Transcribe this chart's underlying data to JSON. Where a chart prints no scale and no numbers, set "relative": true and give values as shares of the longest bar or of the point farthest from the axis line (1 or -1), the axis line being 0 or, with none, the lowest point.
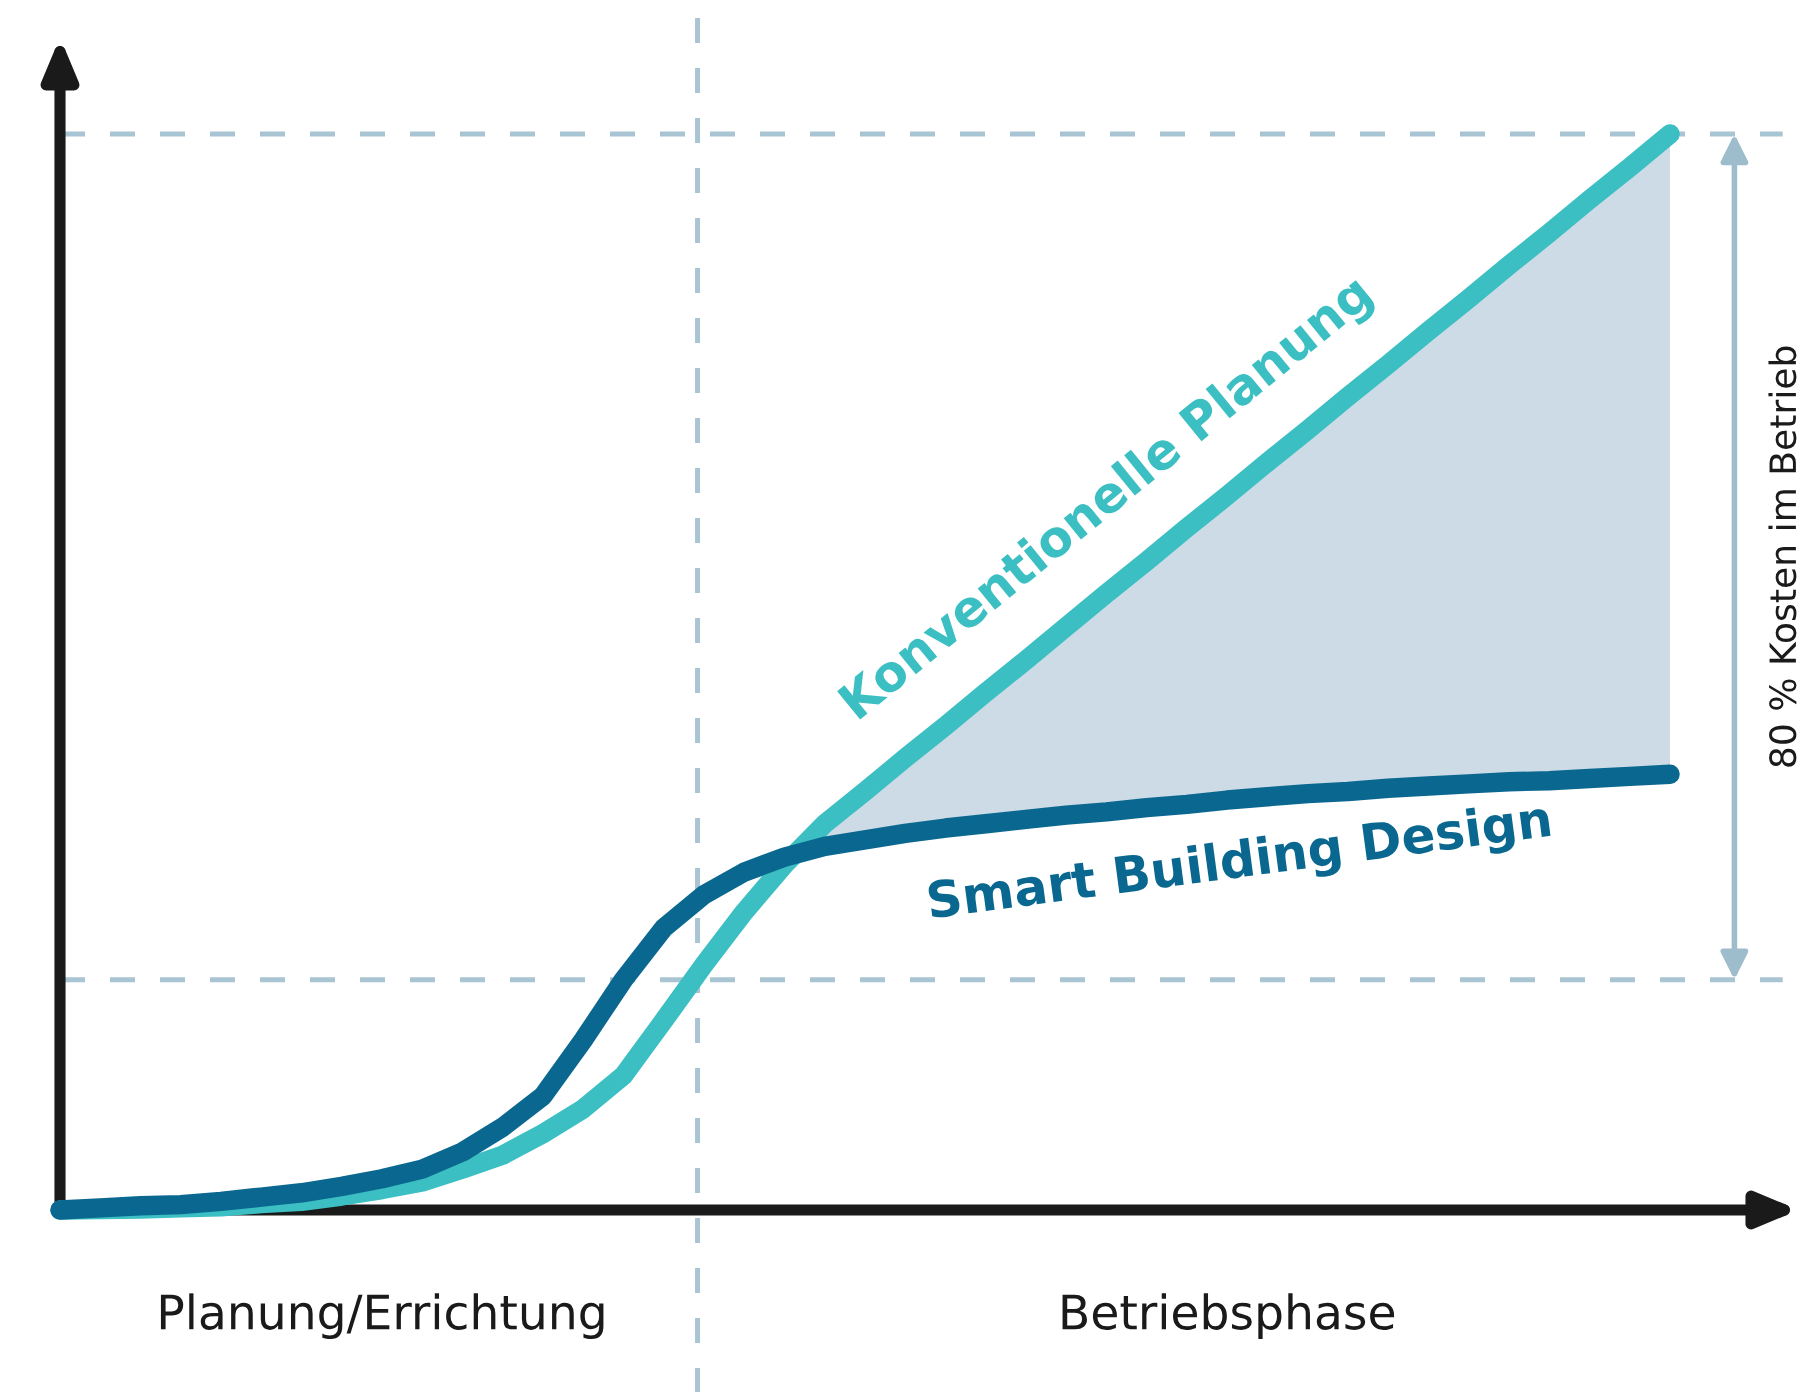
{
  "chart_data": {
    "type": "line",
    "relative": true,
    "categories": [
      null,
      null,
      null,
      null,
      null,
      null,
      null,
      null,
      "Planung/Errichtung",
      null,
      null,
      null,
      null,
      null,
      null,
      null,
      null,
      null,
      null,
      null,
      null,
      null,
      null,
      null,
      null,
      null,
      null,
      null,
      null,
      "Betriebsphase",
      null,
      null,
      null,
      null,
      null,
      null,
      null,
      null,
      null,
      null,
      null
    ],
    "series": [
      {
        "name": "Konventionelle Planung",
        "color": "#3bbfc2",
        "values": [
          0,
          0.0005,
          0.001,
          0.002,
          0.003,
          0.006,
          0.008,
          0.013,
          0.019,
          0.026,
          0.038,
          0.051,
          0.071,
          0.094,
          0.125,
          0.176,
          0.228,
          0.277,
          0.321,
          0.359,
          0.389,
          0.42,
          0.45,
          0.481,
          0.511,
          0.542,
          0.573,
          0.603,
          0.634,
          0.664,
          0.695,
          0.725,
          0.756,
          0.786,
          0.817,
          0.847,
          0.878,
          0.908,
          0.939,
          0.969,
          1
        ],
        "lower": [
          null,
          null,
          null,
          null,
          null,
          null,
          null,
          null,
          null,
          null,
          null,
          null,
          null,
          null,
          null,
          null,
          null,
          null,
          null,
          0.338,
          0.344,
          0.35,
          0.355,
          0.359,
          0.363,
          0.367,
          0.37,
          0.374,
          0.377,
          0.381,
          0.384,
          0.387,
          0.389,
          0.392,
          0.394,
          0.396,
          0.398,
          0.399,
          0.401,
          0.403,
          0.405
        ],
        "upper": [
          null,
          null,
          null,
          null,
          null,
          null,
          null,
          null,
          null,
          null,
          null,
          null,
          null,
          null,
          null,
          null,
          null,
          null,
          null,
          0.359,
          0.389,
          0.42,
          0.45,
          0.481,
          0.511,
          0.542,
          0.573,
          0.603,
          0.634,
          0.664,
          0.695,
          0.725,
          0.756,
          0.786,
          0.817,
          0.847,
          0.878,
          0.908,
          0.939,
          0.969,
          1
        ]
      },
      {
        "name": "Smart Building Design",
        "color": "#0a6890",
        "values": [
          0,
          0.002,
          0.004,
          0.005,
          0.008,
          0.012,
          0.016,
          0.022,
          0.029,
          0.038,
          0.054,
          0.077,
          0.106,
          0.158,
          0.214,
          0.262,
          0.293,
          0.314,
          0.328,
          0.338,
          0.344,
          0.35,
          0.355,
          0.359,
          0.363,
          0.367,
          0.37,
          0.374,
          0.377,
          0.381,
          0.384,
          0.387,
          0.389,
          0.392,
          0.394,
          0.396,
          0.398,
          0.399,
          0.401,
          0.403,
          0.405
        ]
      }
    ],
    "ref_lines": [
      {
        "axis": "y",
        "value": 1,
        "color": "#a9c4d2",
        "line_style": "dashed"
      },
      {
        "axis": "y",
        "value": 0.214,
        "color": "#a9c4d2",
        "line_style": "dashed"
      }
    ],
    "annotations": [
      "80 % Kosten im Betrieb"
    ],
    "marker": "none",
    "line_style": "solid"
  }
}
